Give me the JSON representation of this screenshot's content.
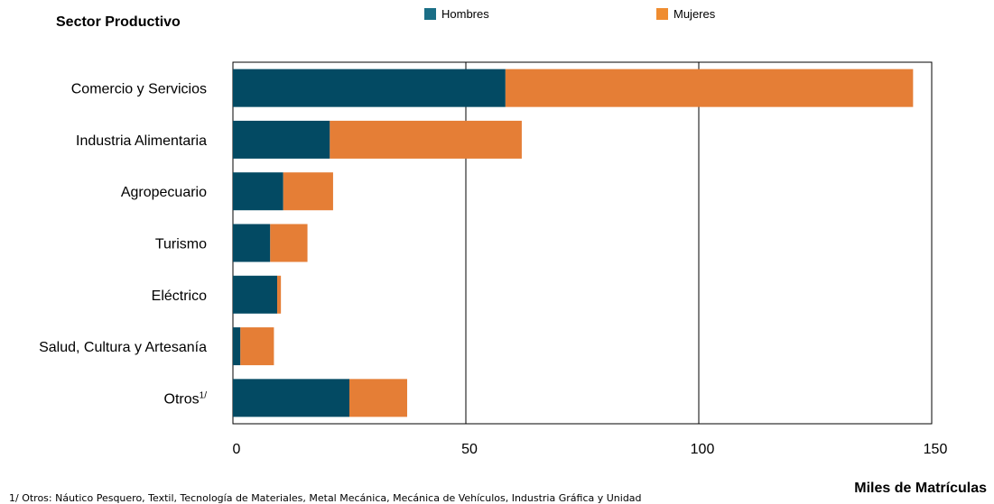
{
  "chart_data": {
    "type": "bar",
    "orientation": "horizontal",
    "stacked": true,
    "ylabel": "Sector Productivo",
    "xlabel": "Miles de Matrículas",
    "categories": [
      "Comercio y Servicios",
      "Industria Alimentaria",
      "Agropecuario",
      "Turismo",
      "Eléctrico",
      "Salud, Cultura y Artesanía",
      "Otros"
    ],
    "category_superscripts": [
      "",
      "",
      "",
      "",
      "",
      "",
      "1/"
    ],
    "series": [
      {
        "name": "Hombres",
        "color": "#034a63",
        "values": [
          58.5,
          20.8,
          10.8,
          8.0,
          9.5,
          1.6,
          25.0
        ]
      },
      {
        "name": "Mujeres",
        "color": "#e57e36",
        "values": [
          87.5,
          41.2,
          10.7,
          8.0,
          0.8,
          7.2,
          12.4
        ]
      }
    ],
    "xlim": [
      0,
      150
    ],
    "xticks": [
      0,
      50,
      100,
      150
    ],
    "grid": true,
    "legend_position": "top-center",
    "footnote": "1/ Otros: Náutico Pesquero, Textil, Tecnología de Materiales, Metal Mecánica, Mecánica de Vehículos, Industria Gráfica y Unidad"
  }
}
